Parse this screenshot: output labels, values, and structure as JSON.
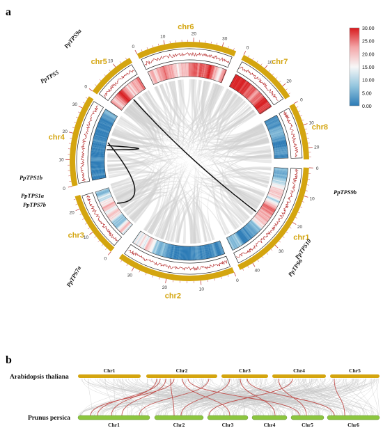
{
  "panel_a": {
    "label": "a",
    "chromosomes": [
      {
        "name": "chr1",
        "ticks": [
          "0",
          "10",
          "20",
          "30",
          "40"
        ],
        "color": "#d4a50f"
      },
      {
        "name": "chr2",
        "ticks": [
          "0",
          "10",
          "20",
          "30"
        ],
        "color": "#d4a50f"
      },
      {
        "name": "chr3",
        "ticks": [
          "0",
          "10",
          "20"
        ],
        "color": "#d4a50f"
      },
      {
        "name": "chr4",
        "ticks": [
          "0",
          "10",
          "20",
          "30"
        ],
        "color": "#d4a50f"
      },
      {
        "name": "chr5",
        "ticks": [
          "0",
          "10"
        ],
        "color": "#d4a50f"
      },
      {
        "name": "chr6",
        "ticks": [
          "0",
          "10",
          "20",
          "30"
        ],
        "color": "#d4a50f"
      },
      {
        "name": "chr7",
        "ticks": [
          "0",
          "10",
          "20"
        ],
        "color": "#d4a50f"
      },
      {
        "name": "chr8",
        "ticks": [
          "0",
          "10",
          "20"
        ],
        "color": "#d4a50f"
      }
    ],
    "genes": [
      {
        "label": "PpTPS9a",
        "chr": "chr5"
      },
      {
        "label": "PpTPS5",
        "chr": "chr5"
      },
      {
        "label": "PpTPS1b",
        "chr": "chr4"
      },
      {
        "label": "PpTPS1a",
        "chr": "chr4"
      },
      {
        "label": "PpTPS7b",
        "chr": "chr4"
      },
      {
        "label": "PpTPS7a",
        "chr": "chr3"
      },
      {
        "label": "PpTPS9b",
        "chr": "chr1"
      },
      {
        "label": "PpTPS10",
        "chr": "chr1"
      },
      {
        "label": "PpTPS6",
        "chr": "chr1"
      }
    ],
    "legend": {
      "ticks": [
        "30.00",
        "25.00",
        "20.00",
        "15.00",
        "10.00",
        "5.00",
        "0.00"
      ],
      "colors": [
        "#d7191c",
        "#f4a6a8",
        "#f7f7f7",
        "#92c5de",
        "#2c7bb6"
      ]
    },
    "link_color": "#d0d0d0",
    "highlight_link_color": "#111111",
    "density_line_color": "#b22222"
  },
  "panel_b": {
    "label": "b",
    "species_top": "Arabidopsis thaliana",
    "species_bottom": "Prunus persica",
    "top_chromosomes": [
      "Chr1",
      "Chr2",
      "Chr3",
      "Chr4",
      "Chr5"
    ],
    "bottom_chromosomes": [
      "Chr1",
      "Chr2",
      "Chr3",
      "Chr4",
      "Chr5",
      "Chr6"
    ],
    "top_color": "#d4a50f",
    "bottom_color": "#8cc63f",
    "highlight_color": "#c0504d"
  }
}
